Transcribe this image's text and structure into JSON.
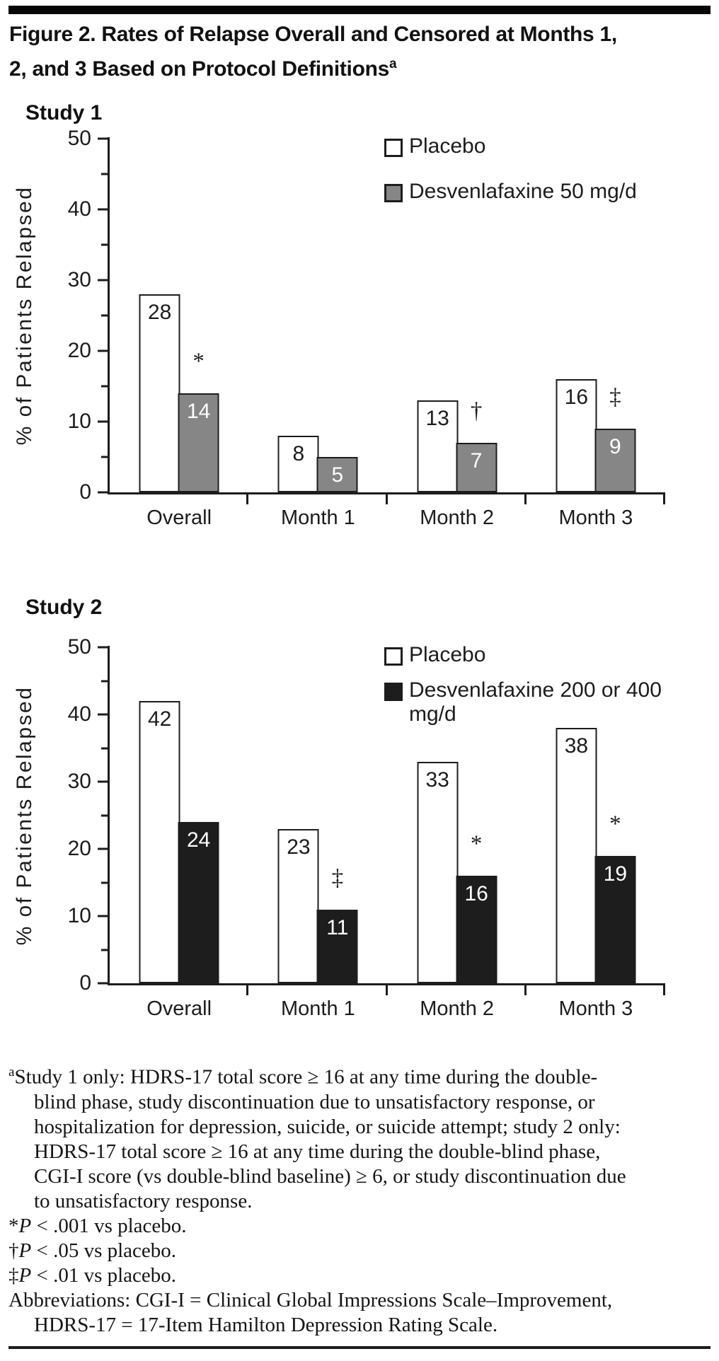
{
  "title": {
    "line1": "Figure 2. Rates of Relapse Overall and Censored at Months 1,",
    "line2": "2, and 3 Based on Protocol Definitions",
    "sup": "a"
  },
  "chart_data": [
    {
      "type": "bar",
      "section_title": "Study 1",
      "categories": [
        "Overall",
        "Month 1",
        "Month 2",
        "Month 3"
      ],
      "series": [
        {
          "name": "Placebo",
          "fill": "#ffffff",
          "values": [
            28,
            8,
            13,
            16
          ]
        },
        {
          "name": "Desvenlafaxine 50 mg/d",
          "fill": "#868686",
          "values": [
            14,
            5,
            7,
            9
          ]
        }
      ],
      "significance_markers": [
        "*",
        "",
        "†",
        "‡"
      ],
      "ylabel": "% of Patients Relapsed",
      "xlabel": "",
      "ylim": [
        0,
        50
      ],
      "yticks": [
        0,
        10,
        20,
        30,
        40,
        50
      ],
      "minor_tick_step": 5,
      "grid": false,
      "legend_position": "top-right"
    },
    {
      "type": "bar",
      "section_title": "Study 2",
      "categories": [
        "Overall",
        "Month 1",
        "Month 2",
        "Month 3"
      ],
      "series": [
        {
          "name": "Placebo",
          "fill": "#ffffff",
          "values": [
            42,
            23,
            33,
            38
          ]
        },
        {
          "name": "Desvenlafaxine 200 or 400 mg/d",
          "fill": "#1d1d1d",
          "values": [
            24,
            11,
            16,
            19
          ]
        }
      ],
      "significance_markers": [
        "",
        "‡",
        "*",
        "*"
      ],
      "ylabel": "% of Patients Relapsed",
      "xlabel": "",
      "ylim": [
        0,
        50
      ],
      "yticks": [
        0,
        10,
        20,
        30,
        40,
        50
      ],
      "minor_tick_step": 5,
      "grid": false,
      "legend_position": "top-right"
    }
  ],
  "footnotes": {
    "a": {
      "sup": "a",
      "lines": [
        "Study 1 only: HDRS-17 total score ≥ 16 at any time during the double-",
        "blind phase, study discontinuation due to unsatisfactory response, or",
        "hospitalization for depression, suicide, or suicide attempt; study 2 only:",
        "HDRS-17 total score ≥ 16 at any time during the double-blind phase,",
        "CGI-I score (vs double-blind baseline) ≥ 6, or study discontinuation due",
        "to unsatisfactory response."
      ]
    },
    "p_notes": [
      {
        "marker": "*",
        "p": "P",
        "rest": " < .001 vs placebo."
      },
      {
        "marker": "†",
        "p": "P",
        "rest": " < .05 vs placebo."
      },
      {
        "marker": "‡",
        "p": "P",
        "rest": " < .01 vs placebo."
      }
    ],
    "abbreviations": {
      "lines": [
        "Abbreviations: CGI-I = Clinical Global Impressions Scale–Improvement,",
        "HDRS-17 = 17-Item Hamilton Depression Rating Scale."
      ]
    }
  },
  "colors": {
    "ink": "#1c1c1c",
    "placebo_fill": "#ffffff",
    "study1_drug_fill": "#868686",
    "study2_drug_fill": "#1d1d1d",
    "background": "#ffffff"
  }
}
